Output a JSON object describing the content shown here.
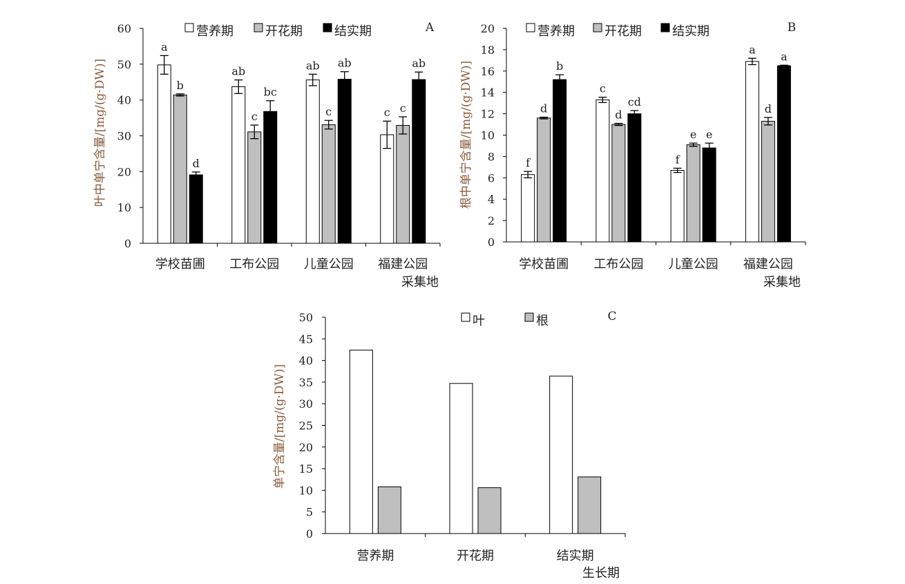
{
  "colors": {
    "营养期": "#ffffff",
    "开花期": "#bfbfbf",
    "结实期": "#000000",
    "叶": "#ffffff",
    "根": "#bfbfbf",
    "axis": "#000000"
  },
  "chart_data": [
    {
      "type": "bar",
      "panel_label": "A",
      "ylabel": "叶中单宁含量/[mg/(g·DW)]",
      "ylim": [
        0,
        60
      ],
      "yticks": [
        0,
        10,
        20,
        30,
        40,
        50,
        60
      ],
      "categories": [
        "学校苗圃",
        "工布公园",
        "儿童公园",
        "福建公园"
      ],
      "xlabel": "采集地",
      "legend_placement": "top",
      "series": [
        {
          "name": "营养期",
          "values": [
            49.8,
            43.7,
            45.6,
            30.3
          ],
          "errors": [
            2.6,
            1.9,
            1.6,
            3.8
          ],
          "letters": [
            "a",
            "ab",
            "ab",
            "c"
          ]
        },
        {
          "name": "开花期",
          "values": [
            41.4,
            31.1,
            33.1,
            32.9
          ],
          "errors": [
            0.3,
            1.9,
            1.2,
            2.4
          ],
          "letters": [
            "b",
            "c",
            "c",
            "c"
          ]
        },
        {
          "name": "结实期",
          "values": [
            19.1,
            36.8,
            45.8,
            45.7
          ],
          "errors": [
            0.8,
            3.0,
            2.1,
            2.1
          ],
          "letters": [
            "d",
            "bc",
            "ab",
            "ab"
          ]
        }
      ]
    },
    {
      "type": "bar",
      "panel_label": "B",
      "ylabel": "根中单宁含量/[mg/(g·DW)]",
      "ylim": [
        0,
        20
      ],
      "yticks": [
        0,
        2,
        4,
        6,
        8,
        10,
        12,
        14,
        16,
        18,
        20
      ],
      "categories": [
        "学校苗圃",
        "工布公园",
        "儿童公园",
        "福建公园"
      ],
      "xlabel": "采集地",
      "legend_placement": "top",
      "series": [
        {
          "name": "营养期",
          "values": [
            6.3,
            13.3,
            6.7,
            16.9
          ],
          "errors": [
            0.3,
            0.25,
            0.2,
            0.3
          ],
          "letters": [
            "f",
            "c",
            "f",
            "a"
          ]
        },
        {
          "name": "开花期",
          "values": [
            11.6,
            11.0,
            9.1,
            11.3
          ],
          "errors": [
            0.08,
            0.1,
            0.15,
            0.35
          ],
          "letters": [
            "d",
            "d",
            "e",
            "d"
          ]
        },
        {
          "name": "结实期",
          "values": [
            15.2,
            12.0,
            8.8,
            16.5
          ],
          "errors": [
            0.45,
            0.3,
            0.45,
            0.05
          ],
          "letters": [
            "b",
            "cd",
            "e",
            "a"
          ]
        }
      ]
    },
    {
      "type": "bar",
      "panel_label": "C",
      "ylabel": "单宁含量/[mg/(g·DW)]",
      "ylim": [
        0,
        50
      ],
      "yticks": [
        0,
        5,
        10,
        15,
        20,
        25,
        30,
        35,
        40,
        45,
        50
      ],
      "categories": [
        "营养期",
        "开花期",
        "结实期"
      ],
      "xlabel": "生长期",
      "legend_placement": "top",
      "series": [
        {
          "name": "叶",
          "values": [
            42.4,
            34.7,
            36.4
          ]
        },
        {
          "name": "根",
          "values": [
            10.8,
            10.6,
            13.1
          ]
        }
      ]
    }
  ]
}
